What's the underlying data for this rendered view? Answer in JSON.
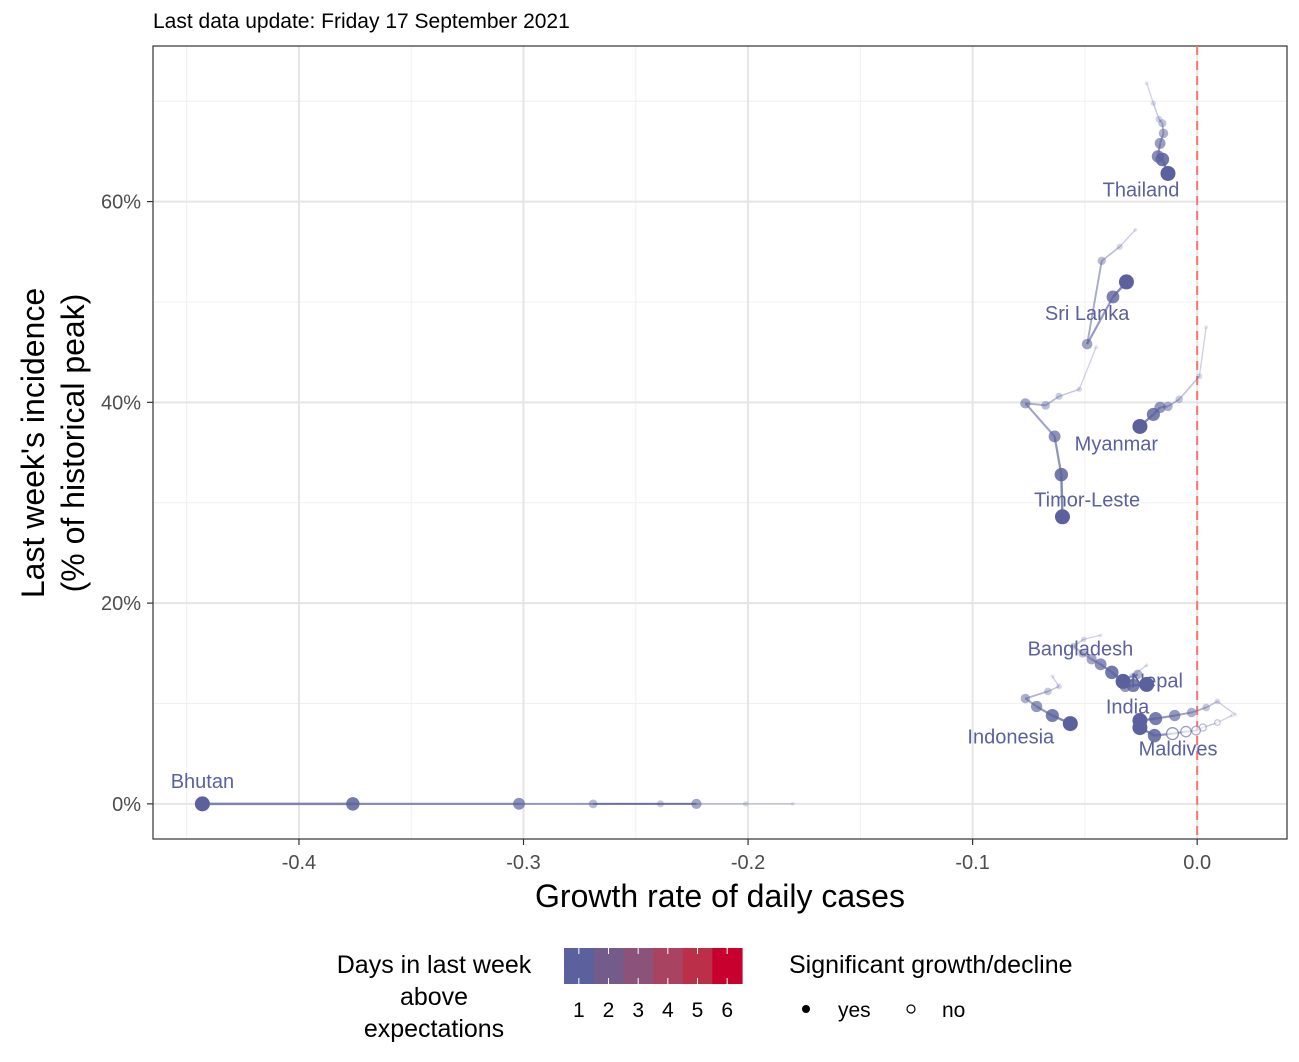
{
  "chart_data": {
    "type": "scatter",
    "subtitle": "Last data update: Friday 17 September 2021",
    "xlabel": "Growth rate of daily cases",
    "ylabel_line1": "Last week's incidence",
    "ylabel_line2": "(% of historical peak)",
    "xlim": [
      -0.465,
      0.04
    ],
    "ylim": [
      -3.5,
      75.5
    ],
    "x_ticks": [
      -0.4,
      -0.3,
      -0.2,
      -0.1,
      0.0
    ],
    "x_tick_labels": [
      "-0.4",
      "-0.3",
      "-0.2",
      "-0.1",
      "0.0"
    ],
    "y_ticks": [
      0,
      20,
      40,
      60
    ],
    "y_tick_labels": [
      "0%",
      "20%",
      "40%",
      "60%"
    ],
    "grid": true,
    "reference_line": {
      "x": 0.0,
      "color": "#f8766d",
      "style": "dashed"
    },
    "colors": {
      "low": "#5b619c",
      "high": "#c8002e",
      "trail": "#5b619c"
    },
    "series": [
      {
        "name": "Thailand",
        "label_pos": [
          -0.025,
          60.5
        ],
        "x": [
          -0.0225,
          -0.0195,
          -0.017,
          -0.0155,
          -0.015,
          -0.0165,
          -0.0175,
          -0.0155,
          -0.013
        ],
        "y": [
          71.8,
          69.8,
          68.2,
          67.8,
          66.8,
          65.8,
          64.5,
          64.2,
          62.8
        ]
      },
      {
        "name": "Sri Lanka",
        "label_pos": [
          -0.049,
          48.2
        ],
        "x": [
          -0.0275,
          -0.0345,
          -0.0425,
          -0.049,
          -0.0375,
          -0.0315
        ],
        "y": [
          57.2,
          55.5,
          54.1,
          45.8,
          50.5,
          52.0
        ]
      },
      {
        "name": "Myanmar",
        "label_pos": [
          -0.036,
          35.2
        ],
        "x": [
          0.004,
          0.001,
          -0.008,
          -0.013,
          -0.0165,
          -0.0195,
          -0.0255
        ],
        "y": [
          47.5,
          42.6,
          40.3,
          39.6,
          39.5,
          38.8,
          37.6
        ]
      },
      {
        "name": "Timor-Leste",
        "label_pos": [
          -0.049,
          29.6
        ],
        "x": [
          -0.045,
          -0.0525,
          -0.0615,
          -0.0675,
          -0.0765,
          -0.0635,
          -0.0605,
          -0.06
        ],
        "y": [
          45.5,
          41.3,
          40.6,
          39.7,
          39.9,
          36.6,
          32.8,
          28.6
        ]
      },
      {
        "name": "Bangladesh",
        "label_pos": [
          -0.052,
          14.8
        ],
        "x": [
          -0.043,
          -0.0505,
          -0.055,
          -0.051,
          -0.047,
          -0.043,
          -0.038,
          -0.033
        ],
        "y": [
          16.8,
          16.4,
          15.7,
          15.0,
          14.4,
          13.9,
          13.1,
          12.2
        ]
      },
      {
        "name": "Nepal",
        "label_pos": [
          -0.018,
          11.6
        ],
        "x": [
          -0.0225,
          -0.029,
          -0.0345,
          -0.0265,
          -0.032,
          -0.0285,
          -0.0225
        ],
        "y": [
          13.8,
          12.8,
          12.2,
          12.9,
          11.7,
          11.8,
          11.9
        ]
      },
      {
        "name": "India",
        "label_pos": [
          -0.031,
          9.0
        ],
        "x": [
          0.017,
          0.009,
          0.004,
          -0.0025,
          -0.01,
          -0.0185,
          -0.0255
        ],
        "y": [
          8.9,
          10.2,
          9.6,
          9.1,
          8.8,
          8.5,
          8.3
        ]
      },
      {
        "name": "Indonesia",
        "label_pos": [
          -0.083,
          6.0
        ],
        "x": [
          -0.0645,
          -0.0615,
          -0.0665,
          -0.0765,
          -0.0715,
          -0.0645,
          -0.0565
        ],
        "y": [
          12.7,
          11.7,
          11.2,
          10.5,
          9.7,
          8.8,
          8.0
        ]
      },
      {
        "name": "Maldives",
        "label_pos": [
          -0.0085,
          4.8
        ],
        "x": [
          0.0155,
          0.009,
          0.0025,
          -0.0005,
          -0.005,
          -0.011,
          -0.019,
          -0.0255
        ],
        "y": [
          8.8,
          8.1,
          7.6,
          7.3,
          7.2,
          7.0,
          6.8,
          7.6
        ],
        "hollow_from": 1,
        "hollow_to": 5
      },
      {
        "name": "Bhutan",
        "label_pos": [
          -0.443,
          1.6
        ],
        "x": [
          -0.18,
          -0.201,
          -0.239,
          -0.269,
          -0.223,
          -0.302,
          -0.376,
          -0.443
        ],
        "y": [
          0,
          0,
          0,
          0,
          0,
          0,
          0,
          0
        ]
      }
    ],
    "legend_color": {
      "title_lines": [
        "Days in last week",
        "above",
        "expectations"
      ],
      "labels": [
        "1",
        "2",
        "3",
        "4",
        "5",
        "6"
      ],
      "colors": [
        "#5b619c",
        "#735b8c",
        "#8c537a",
        "#a84462",
        "#bb2f48",
        "#c8002e"
      ]
    },
    "legend_shape": {
      "title": "Significant growth/decline",
      "items": [
        "yes",
        "no"
      ]
    }
  }
}
